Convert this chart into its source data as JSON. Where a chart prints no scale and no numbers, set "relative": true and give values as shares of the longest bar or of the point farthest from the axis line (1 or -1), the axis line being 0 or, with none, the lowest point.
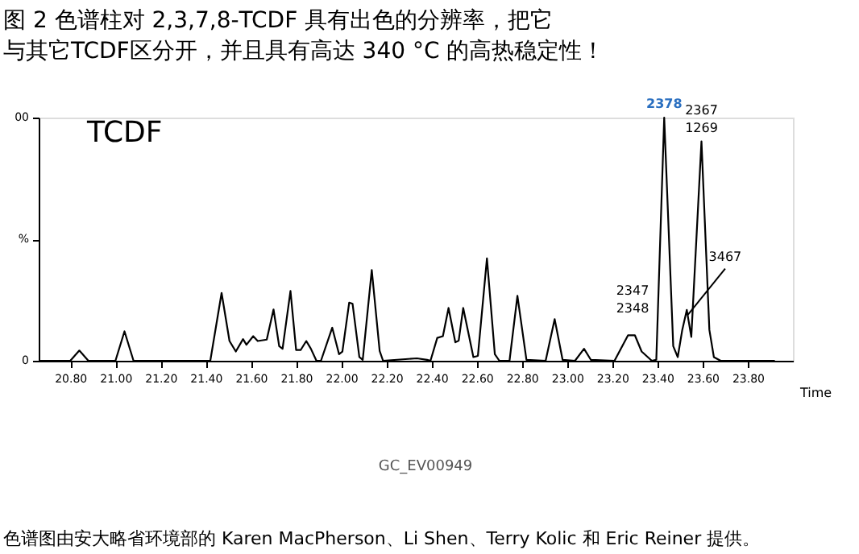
{
  "chart_data": {
    "type": "line",
    "title": "图 2 色谱柱对 2,3,7,8-TCDF 具有出色的分辨率，把它与其它TCDF区分开，并且具有高达 340 °C 的高热稳定性！",
    "xlabel": "Time",
    "relative": true,
    "x": [
      20.66,
      20.8,
      20.84,
      20.88,
      21.0,
      21.04,
      21.08,
      21.42,
      21.47,
      21.505,
      21.533,
      21.565,
      21.58,
      21.61,
      21.63,
      21.67,
      21.7,
      21.725,
      21.74,
      21.775,
      21.8,
      21.82,
      21.845,
      21.865,
      21.89,
      21.91,
      21.96,
      21.99,
      22.005,
      22.035,
      22.05,
      22.08,
      22.095,
      22.135,
      22.17,
      22.185,
      22.335,
      22.38,
      22.395,
      22.425,
      22.45,
      22.475,
      22.505,
      22.52,
      22.54,
      22.585,
      22.605,
      22.645,
      22.68,
      22.7,
      22.745,
      22.78,
      22.82,
      22.905,
      22.945,
      22.98,
      23.035,
      23.075,
      23.105,
      23.21,
      23.27,
      23.3,
      23.33,
      23.375,
      23.395,
      23.43,
      23.47,
      23.49,
      23.51,
      23.53,
      23.55,
      23.595,
      23.63,
      23.65,
      23.68,
      23.92
    ],
    "values": [
      0,
      0,
      0.042,
      0,
      0,
      0.121,
      0,
      0,
      0.279,
      0.081,
      0.038,
      0.089,
      0.066,
      0.101,
      0.081,
      0.087,
      0.211,
      0.06,
      0.049,
      0.287,
      0.044,
      0.044,
      0.081,
      0.05,
      0,
      0,
      0.136,
      0.027,
      0.038,
      0.239,
      0.234,
      0.015,
      0.004,
      0.373,
      0.04,
      0,
      0.01,
      0.004,
      0,
      0.094,
      0.101,
      0.217,
      0.076,
      0.083,
      0.217,
      0.015,
      0.02,
      0.421,
      0.027,
      0,
      0,
      0.267,
      0.004,
      0,
      0.171,
      0.004,
      0,
      0.049,
      0.004,
      0,
      0.105,
      0.105,
      0.038,
      0,
      0.004,
      1,
      0.06,
      0.015,
      0.127,
      0.209,
      0.098,
      0.902,
      0.127,
      0.015,
      0,
      0
    ],
    "xlim": [
      20.66,
      24.0
    ],
    "xticks": [
      {
        "value": 20.8,
        "label": "20.80"
      },
      {
        "value": 21.0,
        "label": "21.00"
      },
      {
        "value": 21.2,
        "label": "21.20"
      },
      {
        "value": 21.4,
        "label": "21.40"
      },
      {
        "value": 21.6,
        "label": "21.60"
      },
      {
        "value": 21.8,
        "label": "21.80"
      },
      {
        "value": 22.0,
        "label": "22.00"
      },
      {
        "value": 22.2,
        "label": "22.20"
      },
      {
        "value": 22.4,
        "label": "22.40"
      },
      {
        "value": 22.6,
        "label": "22.60"
      },
      {
        "value": 22.8,
        "label": "22.80"
      },
      {
        "value": 23.0,
        "label": "23.00"
      },
      {
        "value": 23.2,
        "label": "23.20"
      },
      {
        "value": 23.4,
        "label": "23.40"
      },
      {
        "value": 23.6,
        "label": "23.60"
      },
      {
        "value": 23.8,
        "label": "23.80"
      }
    ],
    "grid": false,
    "marker": "none",
    "line_style": "solid",
    "annotations": [
      {
        "text": "2378",
        "x": 23.43,
        "y": 1
      },
      {
        "text": "2367\n1269",
        "x": 23.595,
        "y": 0.902
      },
      {
        "text": "2347\n2348",
        "x": 23.29,
        "y": 0.105
      },
      {
        "text": "3467",
        "x": 23.53,
        "y": 0.209
      },
      "TCDF",
      "GC_EV00949",
      "色谱图由安大略省环境部的 Karen MacPherson、Li Shen、Terry Kolic 和 Eric Reiner 提供。",
      "00",
      "%",
      "0"
    ]
  }
}
